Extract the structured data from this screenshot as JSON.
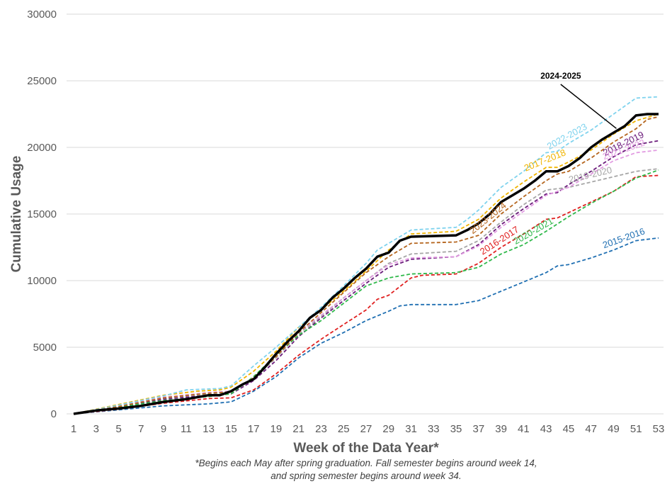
{
  "chart_data": {
    "type": "line",
    "title": "",
    "xlabel": "Week of the Data Year*",
    "ylabel": "Cumulative Usage",
    "xlim": [
      1,
      53
    ],
    "ylim": [
      0,
      30000
    ],
    "x_ticks": [
      1,
      3,
      5,
      7,
      9,
      11,
      13,
      15,
      17,
      19,
      21,
      23,
      25,
      27,
      29,
      31,
      33,
      35,
      37,
      39,
      41,
      43,
      45,
      47,
      49,
      51,
      53
    ],
    "y_ticks": [
      0,
      5000,
      10000,
      15000,
      20000,
      25000,
      30000
    ],
    "grid": "horizontal",
    "footnote": [
      "*Begins each May after spring graduation. Fall semester begins around week 14,",
      "and spring semester begins around week 34."
    ],
    "highlight_series": "2024-2025",
    "series": [
      {
        "name": "2015-2016",
        "color": "#1f6fb2",
        "style": "dashed",
        "label_week": 50,
        "points": [
          [
            1,
            0
          ],
          [
            5,
            300
          ],
          [
            9,
            600
          ],
          [
            13,
            750
          ],
          [
            15,
            900
          ],
          [
            17,
            1700
          ],
          [
            19,
            2800
          ],
          [
            21,
            4200
          ],
          [
            23,
            5300
          ],
          [
            25,
            6100
          ],
          [
            27,
            7000
          ],
          [
            29,
            7700
          ],
          [
            30,
            8100
          ],
          [
            31,
            8200
          ],
          [
            35,
            8200
          ],
          [
            37,
            8500
          ],
          [
            39,
            9200
          ],
          [
            41,
            9900
          ],
          [
            43,
            10600
          ],
          [
            44,
            11100
          ],
          [
            45,
            11200
          ],
          [
            47,
            11700
          ],
          [
            49,
            12300
          ],
          [
            51,
            13000
          ],
          [
            53,
            13200
          ]
        ]
      },
      {
        "name": "2016-2017",
        "color": "#e02020",
        "style": "dashed",
        "label_week": 39,
        "points": [
          [
            1,
            0
          ],
          [
            5,
            350
          ],
          [
            9,
            800
          ],
          [
            13,
            1150
          ],
          [
            15,
            1200
          ],
          [
            17,
            1800
          ],
          [
            19,
            3000
          ],
          [
            21,
            4400
          ],
          [
            23,
            5600
          ],
          [
            25,
            6700
          ],
          [
            27,
            7800
          ],
          [
            28,
            8600
          ],
          [
            29,
            8900
          ],
          [
            31,
            10200
          ],
          [
            32,
            10400
          ],
          [
            35,
            10500
          ],
          [
            37,
            11300
          ],
          [
            39,
            12500
          ],
          [
            41,
            13500
          ],
          [
            43,
            14600
          ],
          [
            44,
            14700
          ],
          [
            45,
            15100
          ],
          [
            47,
            15900
          ],
          [
            49,
            16700
          ],
          [
            51,
            17800
          ],
          [
            53,
            17900
          ]
        ]
      },
      {
        "name": "2017-2018",
        "color": "#f0b400",
        "style": "dashed",
        "label_week": 43,
        "points": [
          [
            1,
            0
          ],
          [
            5,
            700
          ],
          [
            9,
            1400
          ],
          [
            12,
            1700
          ],
          [
            14,
            1800
          ],
          [
            15,
            2000
          ],
          [
            17,
            3200
          ],
          [
            19,
            4700
          ],
          [
            21,
            6500
          ],
          [
            23,
            7800
          ],
          [
            25,
            9200
          ],
          [
            27,
            10700
          ],
          [
            29,
            12300
          ],
          [
            31,
            13500
          ],
          [
            35,
            13700
          ],
          [
            37,
            14600
          ],
          [
            39,
            16200
          ],
          [
            41,
            17400
          ],
          [
            43,
            18500
          ],
          [
            44,
            18500
          ],
          [
            45,
            18900
          ],
          [
            47,
            19800
          ],
          [
            49,
            21000
          ],
          [
            51,
            22000
          ],
          [
            53,
            22500
          ]
        ]
      },
      {
        "name": "2018-2019",
        "color": "#6a1a7a",
        "style": "dashed",
        "label_week": 50,
        "points": [
          [
            1,
            0
          ],
          [
            5,
            500
          ],
          [
            9,
            1100
          ],
          [
            13,
            1400
          ],
          [
            15,
            1500
          ],
          [
            17,
            2500
          ],
          [
            19,
            4000
          ],
          [
            21,
            5800
          ],
          [
            23,
            7200
          ],
          [
            25,
            8500
          ],
          [
            27,
            9800
          ],
          [
            29,
            11000
          ],
          [
            31,
            11600
          ],
          [
            35,
            11800
          ],
          [
            37,
            12700
          ],
          [
            39,
            14200
          ],
          [
            41,
            15400
          ],
          [
            43,
            16500
          ],
          [
            44,
            16600
          ],
          [
            45,
            17200
          ],
          [
            47,
            18200
          ],
          [
            49,
            19300
          ],
          [
            51,
            20200
          ],
          [
            53,
            20500
          ]
        ]
      },
      {
        "name": "2019-2020",
        "color": "#a6a6a6",
        "style": "dashed",
        "label_week": 47,
        "points": [
          [
            1,
            0
          ],
          [
            5,
            550
          ],
          [
            9,
            1200
          ],
          [
            13,
            1500
          ],
          [
            15,
            1600
          ],
          [
            17,
            2600
          ],
          [
            19,
            4200
          ],
          [
            21,
            6000
          ],
          [
            23,
            7300
          ],
          [
            25,
            8700
          ],
          [
            27,
            10000
          ],
          [
            29,
            11300
          ],
          [
            31,
            12000
          ],
          [
            35,
            12200
          ],
          [
            37,
            13000
          ],
          [
            39,
            14400
          ],
          [
            41,
            15700
          ],
          [
            43,
            16800
          ],
          [
            45,
            17000
          ],
          [
            47,
            17400
          ],
          [
            49,
            17800
          ],
          [
            51,
            18200
          ],
          [
            53,
            18400
          ]
        ]
      },
      {
        "name": "2020-2021",
        "color": "#2fb84a",
        "style": "dashed",
        "label_week": 42,
        "points": [
          [
            1,
            0
          ],
          [
            5,
            500
          ],
          [
            9,
            1000
          ],
          [
            13,
            1300
          ],
          [
            15,
            1500
          ],
          [
            17,
            2800
          ],
          [
            19,
            4400
          ],
          [
            21,
            5900
          ],
          [
            23,
            7000
          ],
          [
            25,
            8300
          ],
          [
            27,
            9600
          ],
          [
            29,
            10200
          ],
          [
            31,
            10500
          ],
          [
            35,
            10600
          ],
          [
            37,
            11000
          ],
          [
            39,
            12000
          ],
          [
            41,
            12700
          ],
          [
            43,
            13700
          ],
          [
            45,
            14800
          ],
          [
            47,
            15800
          ],
          [
            49,
            16700
          ],
          [
            51,
            17700
          ],
          [
            53,
            18300
          ]
        ]
      },
      {
        "name": "2021-2022",
        "color": "#e29be2",
        "style": "dashed",
        "label_week": 50,
        "points": [
          [
            1,
            0
          ],
          [
            5,
            600
          ],
          [
            9,
            1250
          ],
          [
            13,
            1600
          ],
          [
            15,
            1700
          ],
          [
            17,
            2700
          ],
          [
            19,
            4300
          ],
          [
            21,
            6100
          ],
          [
            23,
            7400
          ],
          [
            25,
            8700
          ],
          [
            27,
            10000
          ],
          [
            29,
            11200
          ],
          [
            31,
            11700
          ],
          [
            35,
            11800
          ],
          [
            37,
            12600
          ],
          [
            39,
            14000
          ],
          [
            41,
            15200
          ],
          [
            43,
            16400
          ],
          [
            45,
            17000
          ],
          [
            47,
            18000
          ],
          [
            49,
            19000
          ],
          [
            51,
            19600
          ],
          [
            53,
            19800
          ]
        ]
      },
      {
        "name": "2022-2023",
        "color": "#7fd3ee",
        "style": "dashed",
        "label_week": 45,
        "points": [
          [
            1,
            0
          ],
          [
            5,
            650
          ],
          [
            9,
            1350
          ],
          [
            11,
            1800
          ],
          [
            14,
            1900
          ],
          [
            15,
            2100
          ],
          [
            17,
            3600
          ],
          [
            19,
            5000
          ],
          [
            21,
            6500
          ],
          [
            23,
            8000
          ],
          [
            25,
            9600
          ],
          [
            27,
            11300
          ],
          [
            28,
            12300
          ],
          [
            30,
            13300
          ],
          [
            31,
            13800
          ],
          [
            35,
            14000
          ],
          [
            36,
            14600
          ],
          [
            37,
            15300
          ],
          [
            39,
            17000
          ],
          [
            41,
            18200
          ],
          [
            43,
            19600
          ],
          [
            44,
            19700
          ],
          [
            45,
            20300
          ],
          [
            47,
            21300
          ],
          [
            49,
            22500
          ],
          [
            51,
            23700
          ],
          [
            53,
            23800
          ]
        ]
      },
      {
        "name": "2023-2024",
        "color": "#b5651d",
        "style": "dashed",
        "label_week": 38,
        "points": [
          [
            1,
            0
          ],
          [
            5,
            550
          ],
          [
            9,
            1200
          ],
          [
            13,
            1550
          ],
          [
            15,
            1650
          ],
          [
            17,
            2700
          ],
          [
            19,
            4300
          ],
          [
            21,
            6100
          ],
          [
            23,
            7600
          ],
          [
            25,
            9100
          ],
          [
            27,
            10600
          ],
          [
            29,
            11800
          ],
          [
            31,
            12800
          ],
          [
            35,
            12900
          ],
          [
            37,
            13400
          ],
          [
            39,
            15000
          ],
          [
            41,
            16300
          ],
          [
            43,
            17500
          ],
          [
            44,
            18000
          ],
          [
            45,
            18200
          ],
          [
            47,
            19200
          ],
          [
            49,
            20400
          ],
          [
            51,
            21400
          ],
          [
            52,
            22100
          ],
          [
            53,
            22300
          ]
        ]
      },
      {
        "name": "2024-2025",
        "color": "#000000",
        "style": "solid",
        "label_week": 49,
        "points": [
          [
            1,
            0
          ],
          [
            3,
            250
          ],
          [
            5,
            400
          ],
          [
            7,
            600
          ],
          [
            9,
            900
          ],
          [
            11,
            1100
          ],
          [
            13,
            1400
          ],
          [
            14,
            1400
          ],
          [
            15,
            1700
          ],
          [
            16,
            2200
          ],
          [
            17,
            2600
          ],
          [
            18,
            3500
          ],
          [
            19,
            4500
          ],
          [
            20,
            5400
          ],
          [
            21,
            6200
          ],
          [
            22,
            7200
          ],
          [
            23,
            7800
          ],
          [
            24,
            8700
          ],
          [
            25,
            9400
          ],
          [
            26,
            10200
          ],
          [
            27,
            10900
          ],
          [
            28,
            11800
          ],
          [
            29,
            12100
          ],
          [
            30,
            13000
          ],
          [
            31,
            13300
          ],
          [
            35,
            13400
          ],
          [
            36,
            13800
          ],
          [
            37,
            14300
          ],
          [
            38,
            15000
          ],
          [
            39,
            15900
          ],
          [
            40,
            16400
          ],
          [
            41,
            16900
          ],
          [
            42,
            17500
          ],
          [
            43,
            18200
          ],
          [
            44,
            18200
          ],
          [
            45,
            18600
          ],
          [
            46,
            19200
          ],
          [
            47,
            20000
          ],
          [
            48,
            20600
          ],
          [
            49,
            21100
          ],
          [
            50,
            21600
          ],
          [
            51,
            22400
          ],
          [
            52,
            22500
          ],
          [
            53,
            22500
          ]
        ]
      }
    ]
  }
}
